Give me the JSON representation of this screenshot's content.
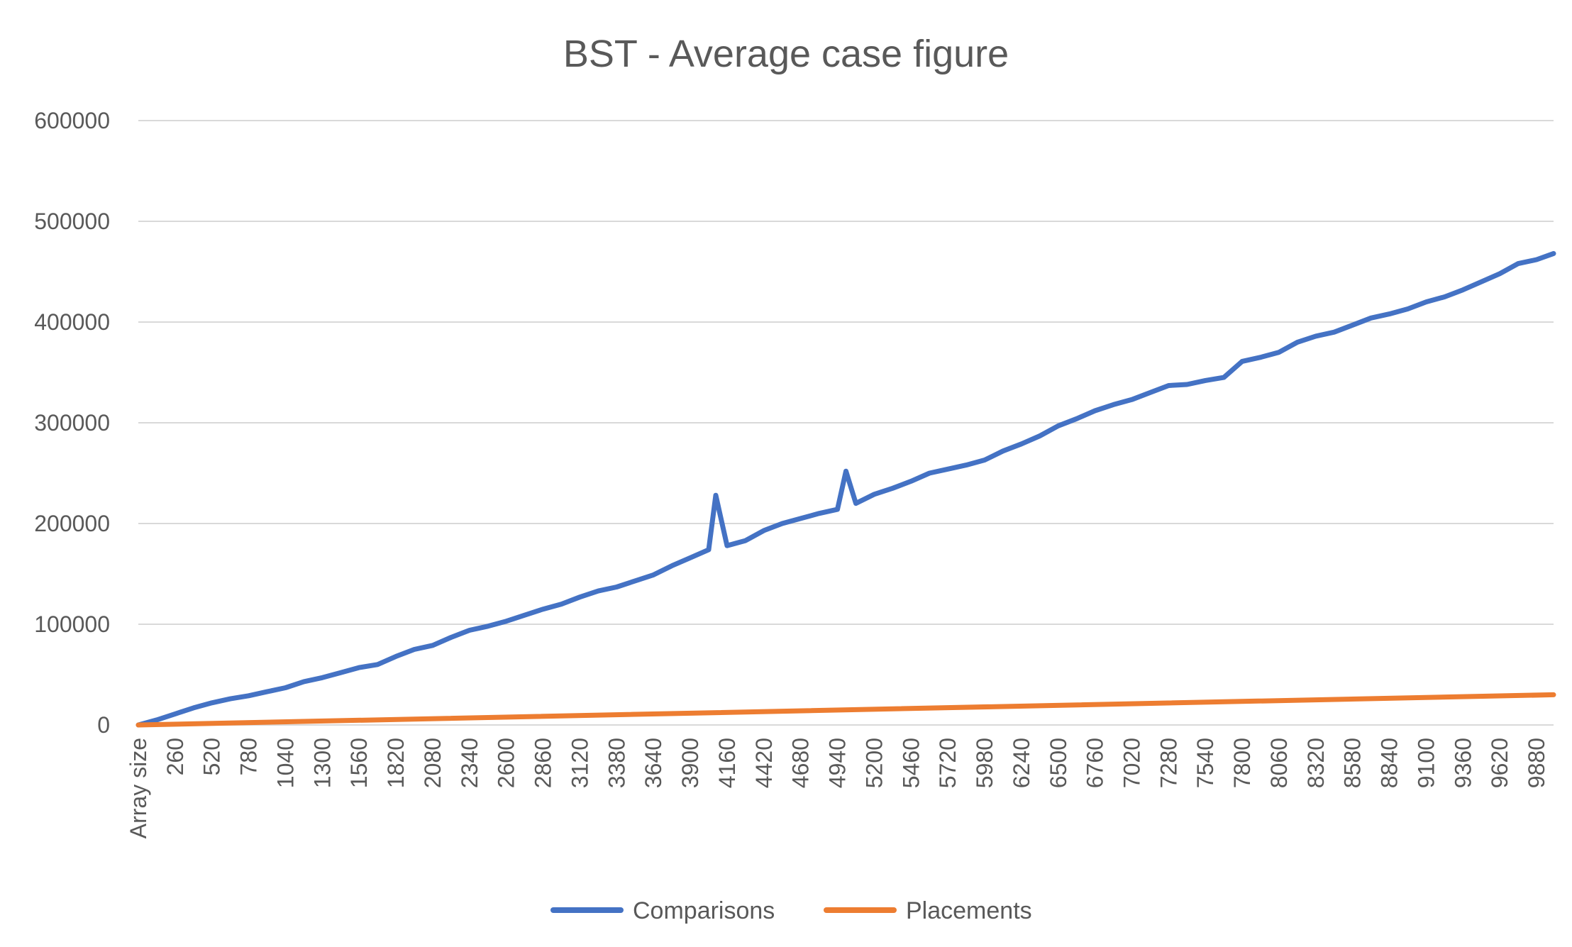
{
  "chart_data": {
    "type": "line",
    "title": "BST - Average case figure",
    "xlabel": "",
    "ylabel": "",
    "x_first_label": "Array size",
    "x_tick_labels": [
      "260",
      "520",
      "780",
      "1040",
      "1300",
      "1560",
      "1820",
      "2080",
      "2340",
      "2600",
      "2860",
      "3120",
      "3380",
      "3640",
      "3900",
      "4160",
      "4420",
      "4680",
      "4940",
      "5200",
      "5460",
      "5720",
      "5980",
      "6240",
      "6500",
      "6760",
      "7020",
      "7280",
      "7540",
      "7800",
      "8060",
      "8320",
      "8580",
      "8840",
      "9100",
      "9360",
      "9620",
      "9880"
    ],
    "y_tick_labels": [
      "0",
      "100000",
      "200000",
      "300000",
      "400000",
      "500000",
      "600000"
    ],
    "xlim": [
      0,
      10000
    ],
    "ylim": [
      0,
      600000
    ],
    "grid": true,
    "legend_position": "bottom",
    "series": [
      {
        "name": "Comparisons",
        "color": "#4472C4",
        "x": [
          0,
          130,
          260,
          390,
          520,
          650,
          780,
          910,
          1040,
          1170,
          1300,
          1430,
          1560,
          1690,
          1820,
          1950,
          2080,
          2210,
          2340,
          2470,
          2600,
          2730,
          2860,
          2990,
          3120,
          3250,
          3380,
          3510,
          3640,
          3770,
          3900,
          4030,
          4080,
          4160,
          4290,
          4420,
          4550,
          4680,
          4810,
          4940,
          5000,
          5070,
          5200,
          5330,
          5460,
          5590,
          5720,
          5850,
          5980,
          6110,
          6240,
          6370,
          6500,
          6630,
          6760,
          6890,
          7020,
          7150,
          7280,
          7410,
          7540,
          7670,
          7800,
          7930,
          8060,
          8190,
          8320,
          8450,
          8580,
          8710,
          8840,
          8970,
          9100,
          9230,
          9360,
          9490,
          9620,
          9750,
          9880,
          10000
        ],
        "values": [
          0,
          5000,
          11000,
          17000,
          22000,
          26000,
          29000,
          33000,
          37000,
          43000,
          47000,
          52000,
          57000,
          60000,
          68000,
          75000,
          79000,
          87000,
          94000,
          98000,
          103000,
          109000,
          115000,
          120000,
          127000,
          133000,
          137000,
          143000,
          149000,
          158000,
          166000,
          174000,
          228000,
          178000,
          183000,
          193000,
          200000,
          205000,
          210000,
          214000,
          252000,
          220000,
          229000,
          235000,
          242000,
          250000,
          254000,
          258000,
          263000,
          272000,
          279000,
          287000,
          297000,
          304000,
          312000,
          318000,
          323000,
          330000,
          337000,
          338000,
          342000,
          345000,
          361000,
          365000,
          370000,
          380000,
          386000,
          390000,
          397000,
          404000,
          408000,
          413000,
          420000,
          425000,
          432000,
          440000,
          448000,
          458000,
          462000,
          468000
        ]
      },
      {
        "name": "Placements",
        "color": "#ED7D31",
        "x": [
          0,
          10000
        ],
        "values": [
          0,
          30000
        ]
      }
    ]
  }
}
